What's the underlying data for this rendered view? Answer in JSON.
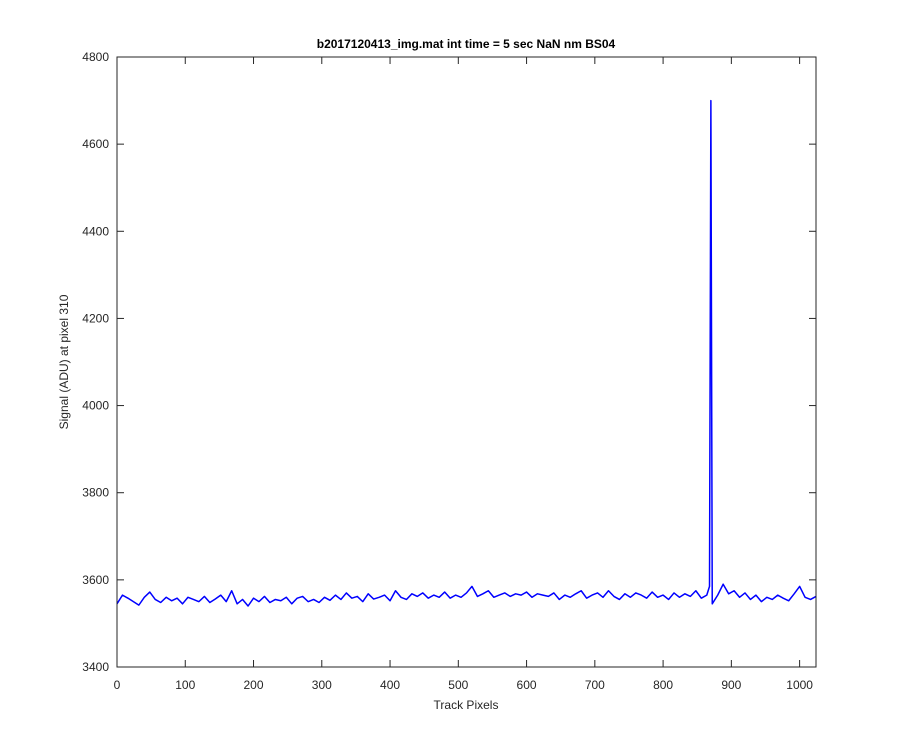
{
  "chart_data": {
    "type": "line",
    "title": "b2017120413_img.mat int time = 5 sec  NaN nm BS04",
    "xlabel": "Track Pixels",
    "ylabel": "Signal (ADU) at pixel 310",
    "x": [
      0,
      8,
      16,
      24,
      32,
      40,
      48,
      56,
      64,
      72,
      80,
      88,
      96,
      104,
      112,
      120,
      128,
      136,
      144,
      152,
      160,
      168,
      176,
      184,
      192,
      200,
      208,
      216,
      224,
      232,
      240,
      248,
      256,
      264,
      272,
      280,
      288,
      296,
      304,
      312,
      320,
      328,
      336,
      344,
      352,
      360,
      368,
      376,
      384,
      392,
      400,
      408,
      416,
      424,
      432,
      440,
      448,
      456,
      464,
      472,
      480,
      488,
      496,
      504,
      512,
      520,
      528,
      536,
      544,
      552,
      560,
      568,
      576,
      584,
      592,
      600,
      608,
      616,
      624,
      632,
      640,
      648,
      656,
      664,
      672,
      680,
      688,
      696,
      704,
      712,
      720,
      728,
      736,
      744,
      752,
      760,
      768,
      776,
      784,
      792,
      800,
      808,
      816,
      824,
      832,
      840,
      848,
      856,
      864,
      868,
      870,
      872,
      880,
      888,
      896,
      904,
      912,
      920,
      928,
      936,
      944,
      952,
      960,
      968,
      976,
      984,
      992,
      1000,
      1008,
      1016,
      1024
    ],
    "series": [
      {
        "name": "signal",
        "color": "#0000ff",
        "values": [
          3545,
          3565,
          3558,
          3550,
          3542,
          3560,
          3572,
          3555,
          3548,
          3560,
          3552,
          3558,
          3545,
          3560,
          3555,
          3550,
          3562,
          3548,
          3556,
          3565,
          3550,
          3575,
          3545,
          3555,
          3540,
          3558,
          3550,
          3562,
          3548,
          3555,
          3552,
          3560,
          3545,
          3558,
          3562,
          3550,
          3555,
          3548,
          3560,
          3553,
          3565,
          3555,
          3570,
          3558,
          3562,
          3550,
          3568,
          3556,
          3560,
          3565,
          3552,
          3575,
          3560,
          3555,
          3568,
          3562,
          3570,
          3558,
          3565,
          3560,
          3572,
          3558,
          3565,
          3560,
          3570,
          3585,
          3562,
          3568,
          3575,
          3560,
          3565,
          3570,
          3562,
          3568,
          3565,
          3572,
          3560,
          3568,
          3565,
          3562,
          3570,
          3555,
          3565,
          3560,
          3568,
          3575,
          3558,
          3565,
          3570,
          3560,
          3575,
          3562,
          3555,
          3568,
          3560,
          3570,
          3565,
          3558,
          3572,
          3560,
          3565,
          3555,
          3570,
          3560,
          3568,
          3562,
          3575,
          3558,
          3565,
          3585,
          4700,
          3545,
          3565,
          3590,
          3568,
          3575,
          3560,
          3570,
          3555,
          3565,
          3550,
          3560,
          3555,
          3565,
          3558,
          3552,
          3568,
          3585,
          3560,
          3555,
          3562
        ]
      }
    ],
    "xlim": [
      0,
      1024
    ],
    "ylim": [
      3400,
      4800
    ],
    "xticks": [
      0,
      100,
      200,
      300,
      400,
      500,
      600,
      700,
      800,
      900,
      1000
    ],
    "yticks": [
      3400,
      3600,
      3800,
      4000,
      4200,
      4400,
      4600,
      4800
    ]
  }
}
